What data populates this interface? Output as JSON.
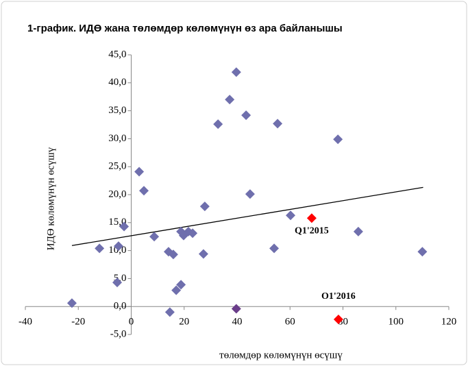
{
  "chart_data": {
    "type": "scatter",
    "title": "1-график. ИДӨ жана төлөмдөр көлөмүнүн өз ара байланышы",
    "x_label": "төлөмдөр көлөмүнүн өсүшү",
    "y_label": "ИДӨ көлөмүнүн өсүшү",
    "xlim": [
      -40,
      120
    ],
    "ylim": [
      -5,
      45
    ],
    "xticks": [
      -40,
      -20,
      0,
      20,
      40,
      60,
      80,
      100,
      120
    ],
    "yticks": [
      {
        "value": -5,
        "label": "-5,0"
      },
      {
        "value": 0,
        "label": "0,0"
      },
      {
        "value": 5,
        "label": "5,0"
      },
      {
        "value": 10,
        "label": "10,0"
      },
      {
        "value": 15,
        "label": "15,0"
      },
      {
        "value": 20,
        "label": "20,0"
      },
      {
        "value": 25,
        "label": "25,0"
      },
      {
        "value": 30,
        "label": "30,0"
      },
      {
        "value": 35,
        "label": "35,0"
      },
      {
        "value": 40,
        "label": "40,0"
      },
      {
        "value": 45,
        "label": "45,0"
      }
    ],
    "series": [
      {
        "color": "#6f6fad",
        "x": [
          -22.4,
          3.0,
          4.8,
          -2.7,
          -12.0,
          -4.8,
          -5.3,
          8.7,
          14.1,
          15.9,
          14.6,
          17.0,
          18.8,
          18.8,
          19.8,
          21.6,
          23.2,
          27.3,
          27.8,
          32.8,
          37.2,
          39.7,
          43.4,
          44.9,
          55.3,
          54.0,
          60.2,
          78.1,
          85.8,
          110.0
        ],
        "values": [
          0.6,
          24.1,
          20.7,
          14.3,
          10.4,
          10.8,
          4.3,
          12.5,
          9.8,
          9.3,
          -1.0,
          2.9,
          3.9,
          13.4,
          12.7,
          13.4,
          13.1,
          9.4,
          17.9,
          32.6,
          37.0,
          41.9,
          34.2,
          20.1,
          32.7,
          10.4,
          16.3,
          29.9,
          13.4,
          9.8
        ]
      },
      {
        "color": "#ff0000",
        "x": [
          68.2,
          78.3
        ],
        "values": [
          15.8,
          -2.3
        ],
        "labels": [
          "Q1'2015",
          "O1'2016"
        ]
      },
      {
        "color": "#6a3d8a",
        "x": [
          39.7
        ],
        "values": [
          -0.4
        ]
      }
    ],
    "trendline": {
      "color": "#000000",
      "x": [
        -22.4,
        110.3
      ],
      "values": [
        10.9,
        21.3
      ]
    }
  }
}
